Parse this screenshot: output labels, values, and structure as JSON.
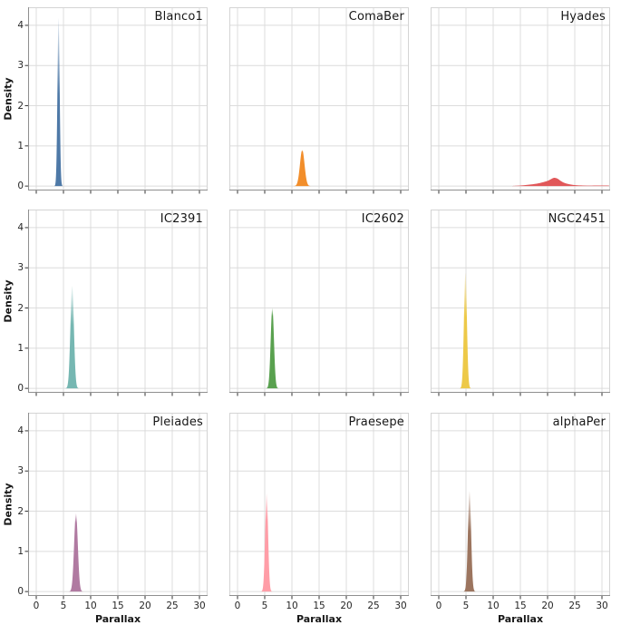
{
  "chart_data": {
    "type": "area",
    "kind": "faceted-kde-grid-3x3",
    "xlabel": "Parallax",
    "ylabel": "Density",
    "x_ticks": [
      0,
      5,
      10,
      15,
      20,
      25,
      30
    ],
    "y_ticks": [
      0,
      1,
      2,
      3,
      4
    ],
    "xlim": [
      -1.5,
      31.5
    ],
    "ylim": [
      -0.11,
      4.45
    ],
    "grid": true,
    "legend": false,
    "panels": [
      {
        "title": "Blanco1",
        "color": "#4e79a7",
        "peak": {
          "center": 4.1,
          "height": 4.18,
          "sigma": 0.2
        },
        "fade_start": 0.55
      },
      {
        "title": "ComaBer",
        "color": "#f28e2b",
        "peak": {
          "center": 11.9,
          "height": 0.9,
          "sigma": 0.42
        },
        "fade_start": 0.95
      },
      {
        "title": "Hyades",
        "color": "#e15759",
        "curve": {
          "x": [
            13.5,
            15,
            16.5,
            18,
            19,
            20,
            20.6,
            21.2,
            21.8,
            22.4,
            23,
            24,
            25,
            26.5,
            28,
            29.5,
            30.5,
            31.5
          ],
          "y": [
            0.004,
            0.015,
            0.035,
            0.06,
            0.09,
            0.13,
            0.17,
            0.205,
            0.185,
            0.13,
            0.085,
            0.045,
            0.025,
            0.015,
            0.012,
            0.013,
            0.015,
            0.012
          ]
        },
        "fade_start": 1
      },
      {
        "title": "IC2391",
        "color": "#76b7b2",
        "peak": {
          "center": 6.6,
          "height": 2.55,
          "sigma": 0.32
        },
        "fade_start": 0.62
      },
      {
        "title": "IC2602",
        "color": "#59a14f",
        "peak": {
          "center": 6.4,
          "height": 2.0,
          "sigma": 0.3
        },
        "fade_start": 0.9
      },
      {
        "title": "NGC2451",
        "color": "#edc948",
        "peak": {
          "center": 4.9,
          "height": 2.87,
          "sigma": 0.27
        },
        "fade_start": 0.62
      },
      {
        "title": "Pleiades",
        "color": "#b07aa1",
        "peak": {
          "center": 7.3,
          "height": 1.95,
          "sigma": 0.34
        },
        "fade_start": 0.88
      },
      {
        "title": "Praesepe",
        "color": "#ff9da7",
        "peak": {
          "center": 5.35,
          "height": 2.45,
          "sigma": 0.27
        },
        "fade_start": 0.72
      },
      {
        "title": "alphaPer",
        "color": "#9c755f",
        "peak": {
          "center": 5.65,
          "height": 2.5,
          "sigma": 0.29
        },
        "fade_start": 0.6
      }
    ]
  },
  "style": {
    "background": "#ffffff",
    "grid_color": "#dcdcdc",
    "border_color": "#d4d4d4",
    "spine_color": "#8f8f8f",
    "tick_color": "#333333",
    "text_color": "#171717"
  }
}
